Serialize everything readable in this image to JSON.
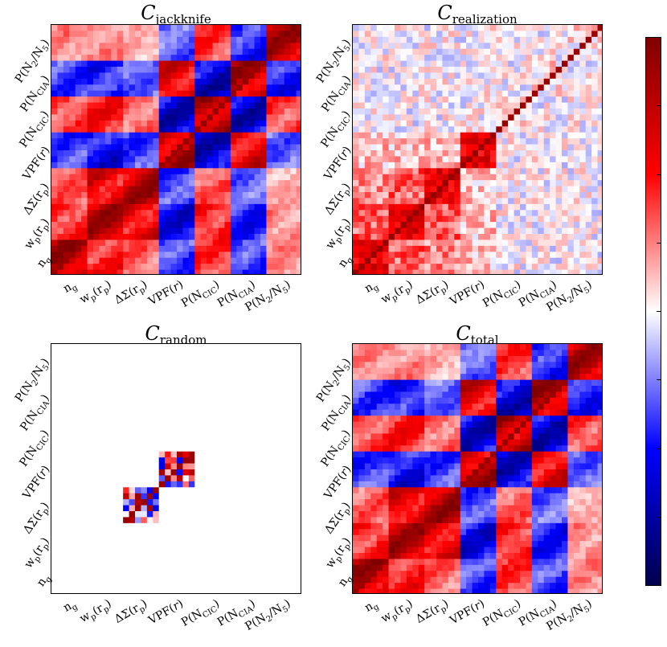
{
  "chart_data": {
    "type": "heatmap",
    "colormap": "seismic (dark blue to white to dark red)",
    "colors": {
      "neg": "#00004c",
      "mid": "#ffffff",
      "pos": "#800000"
    },
    "blocks": [
      "ng",
      "wp(rp)",
      "ΔΣ(rp)",
      "VPF(r)",
      "P(NCIC)",
      "P(NCIA)",
      "P(N2/N5)"
    ],
    "axis_labels": [
      {
        "main": "n",
        "sub": "g",
        "tail": ""
      },
      {
        "main": "w",
        "sub": "p",
        "tail": "(r",
        "sub2": "p",
        "tail2": ")"
      },
      {
        "main": "ΔΣ(r",
        "sub": "p",
        "tail": ")"
      },
      {
        "main": "VPF(",
        "it": "r",
        "tail": ")"
      },
      {
        "main": "P(N",
        "sub": "CIC",
        "tail": ")"
      },
      {
        "main": "P(N",
        "sub": "CIA",
        "tail": ")"
      },
      {
        "main": "P(N",
        "sub": "2",
        "tail": "/N",
        "sub2": "5",
        "tail2": ")"
      }
    ],
    "y_label_order_top_to_bottom": [
      "P(N2/N5)",
      "P(NCIA)",
      "P(NCIC)",
      "VPF(r)",
      "ΔΣ(rp)",
      "wp(rp)",
      "ng"
    ],
    "panels": [
      {
        "id": "jackknife",
        "title_main": "C",
        "title_sub": "jackknife",
        "pattern": "strong block-structured correlations; red within same statistic, blue between anticorrelated statistics"
      },
      {
        "id": "realization",
        "title_main": "C",
        "title_sub": "realization",
        "pattern": "mostly weak noisy correlations; strong red diagonal and positive blocks for wp, ΔΣ, VPF"
      },
      {
        "id": "random",
        "title_main": "C",
        "title_sub": "random",
        "pattern": "near zero everywhere except noisy red/blue blocks for ΔΣ(rp) and VPF(r)"
      },
      {
        "id": "total",
        "title_main": "C",
        "title_sub": "total",
        "pattern": "sum of components; closely resembles jackknife panel"
      }
    ],
    "colorbar": {
      "orientation": "vertical",
      "ticks": 9
    }
  }
}
